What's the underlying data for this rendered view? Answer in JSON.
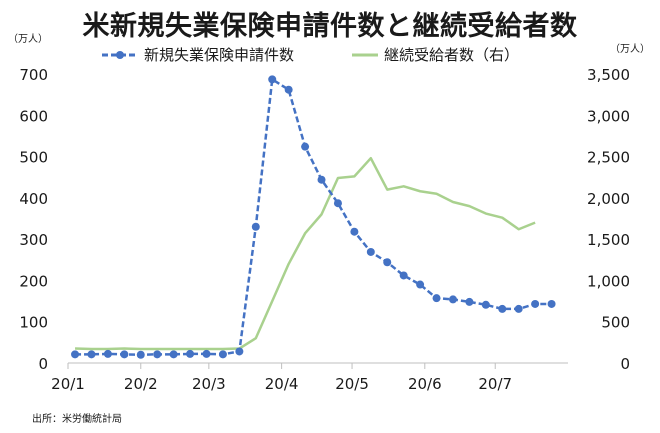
{
  "title": "米新規失業保険申請件数と継続受給者数",
  "unit_left": "（万人）",
  "unit_right": "（万人）",
  "source": "出所：米労働統計局",
  "colors": {
    "series1": "#4472C4",
    "series2": "#A9D18E",
    "axis": "#bfbfbf"
  },
  "chart_data": {
    "type": "line",
    "title": "米新規失業保険申請件数と継続受給者数",
    "x_tick_labels": [
      "20/1",
      "20/2",
      "20/3",
      "20/4",
      "20/5",
      "20/6",
      "20/7"
    ],
    "x_tick_dates": [
      "2020-01-01",
      "2020-02-01",
      "2020-03-01",
      "2020-04-01",
      "2020-05-01",
      "2020-06-01",
      "2020-07-01"
    ],
    "x_range": [
      "2020-01-01",
      "2020-07-31"
    ],
    "y_left": {
      "label": "（万人）",
      "min": 0,
      "max": 700,
      "step": 100,
      "tick_labels": [
        "0",
        "100",
        "200",
        "300",
        "400",
        "500",
        "600",
        "700"
      ]
    },
    "y_right": {
      "label": "（万人）",
      "min": 0,
      "max": 3500,
      "step": 500,
      "tick_labels": [
        "0",
        "500",
        "1,000",
        "1,500",
        "2,000",
        "2,500",
        "3,000",
        "3,500"
      ]
    },
    "legend_position": "top",
    "grid": false,
    "series": [
      {
        "name": "新規失業保険申請件数",
        "axis": "left",
        "color": "#4472C4",
        "marker": "circle",
        "style": "dashed-markers",
        "x": [
          "2020-01-04",
          "2020-01-11",
          "2020-01-18",
          "2020-01-25",
          "2020-02-01",
          "2020-02-08",
          "2020-02-15",
          "2020-02-22",
          "2020-02-29",
          "2020-03-07",
          "2020-03-14",
          "2020-03-21",
          "2020-03-28",
          "2020-04-04",
          "2020-04-11",
          "2020-04-18",
          "2020-04-25",
          "2020-05-02",
          "2020-05-09",
          "2020-05-16",
          "2020-05-23",
          "2020-05-30",
          "2020-06-06",
          "2020-06-13",
          "2020-06-20",
          "2020-06-27",
          "2020-07-04",
          "2020-07-11",
          "2020-07-18",
          "2020-07-25"
        ],
        "values": [
          21,
          21,
          22,
          21,
          20,
          21,
          21,
          22,
          22,
          21,
          28,
          330,
          687,
          662,
          524,
          444,
          387,
          318,
          269,
          244,
          212,
          190,
          157,
          154,
          148,
          141,
          131,
          131,
          143,
          143
        ]
      },
      {
        "name": "継続受給者数（右）",
        "axis": "right",
        "color": "#A9D18E",
        "marker": "none",
        "x": [
          "2020-01-04",
          "2020-01-11",
          "2020-01-18",
          "2020-01-25",
          "2020-02-01",
          "2020-02-08",
          "2020-02-15",
          "2020-02-22",
          "2020-02-29",
          "2020-03-07",
          "2020-03-14",
          "2020-03-21",
          "2020-03-28",
          "2020-04-04",
          "2020-04-11",
          "2020-04-18",
          "2020-04-25",
          "2020-05-02",
          "2020-05-09",
          "2020-05-16",
          "2020-05-23",
          "2020-05-30",
          "2020-06-06",
          "2020-06-13",
          "2020-06-20",
          "2020-06-27",
          "2020-07-04",
          "2020-07-11",
          "2020-07-18"
        ],
        "values": [
          175,
          170,
          170,
          175,
          170,
          170,
          170,
          170,
          170,
          170,
          175,
          300,
          750,
          1200,
          1570,
          1800,
          2240,
          2260,
          2480,
          2100,
          2140,
          2080,
          2050,
          1950,
          1900,
          1810,
          1760,
          1620,
          1700
        ]
      }
    ]
  }
}
